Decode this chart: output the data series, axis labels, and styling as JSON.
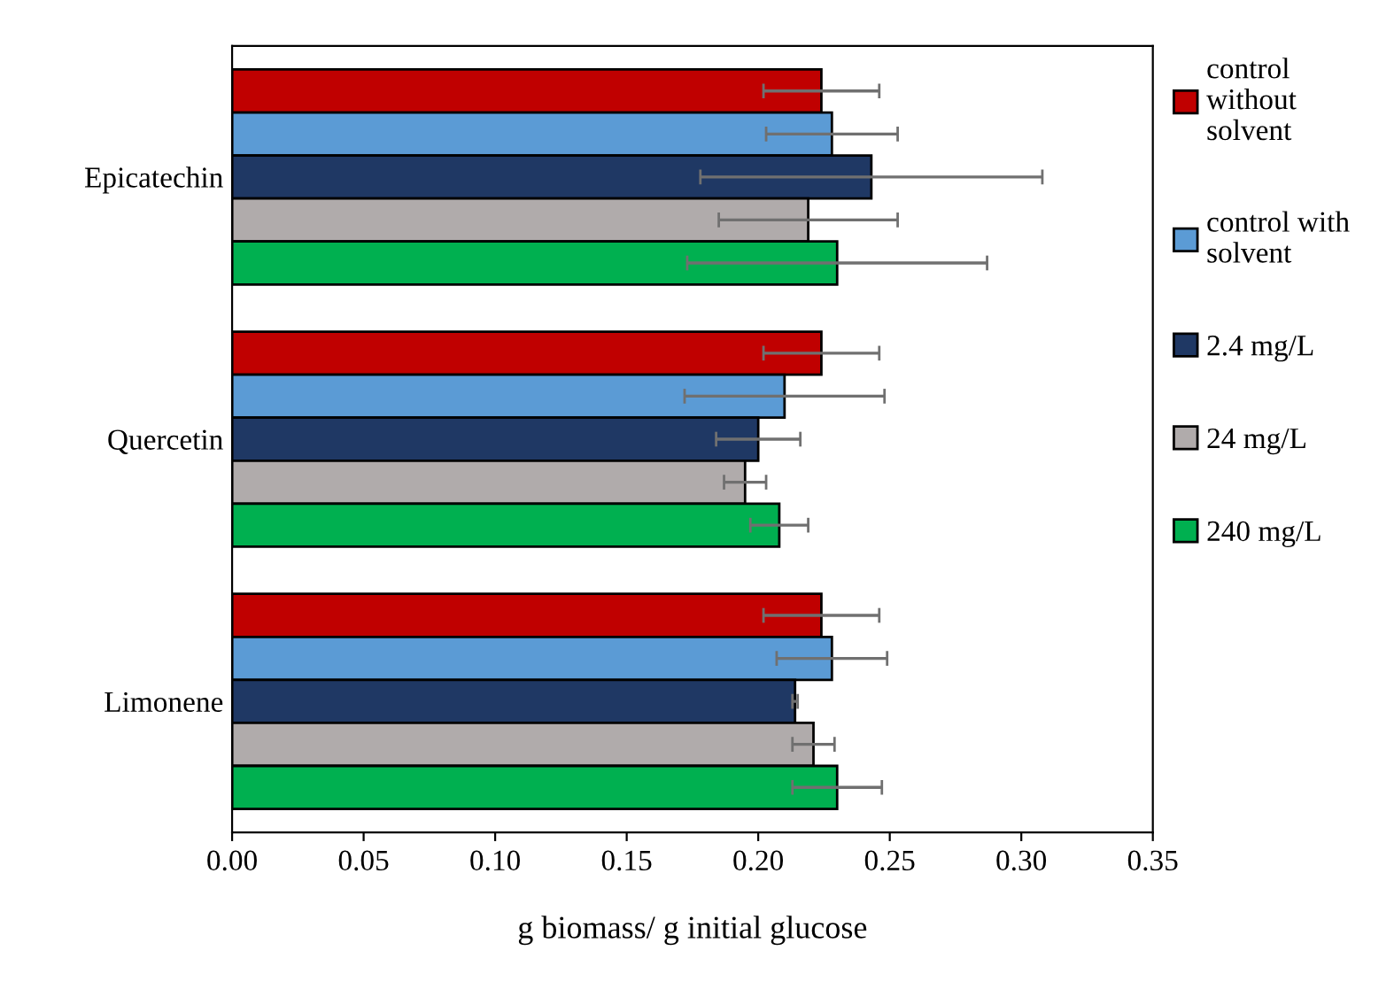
{
  "chart_data": {
    "type": "bar",
    "orientation": "horizontal",
    "xlabel": "g biomass/ g initial glucose",
    "categories": [
      "Epicatechin",
      "Quercetin",
      "Limonene"
    ],
    "series": [
      {
        "name": "control without solvent",
        "color": "#c00000",
        "values": [
          0.224,
          0.224,
          0.224
        ],
        "errors": [
          0.022,
          0.022,
          0.022
        ]
      },
      {
        "name": "control with solvent",
        "color": "#5b9bd5",
        "values": [
          0.228,
          0.21,
          0.228
        ],
        "errors": [
          0.025,
          0.038,
          0.021
        ]
      },
      {
        "name": "2.4 mg/L",
        "color": "#1f3864",
        "values": [
          0.243,
          0.2,
          0.214
        ],
        "errors": [
          0.065,
          0.016,
          0.001
        ]
      },
      {
        "name": "24 mg/L",
        "color": "#b0abab",
        "values": [
          0.219,
          0.195,
          0.221
        ],
        "errors": [
          0.034,
          0.008,
          0.008
        ]
      },
      {
        "name": "240 mg/L",
        "color": "#00b050",
        "values": [
          0.23,
          0.208,
          0.23
        ],
        "errors": [
          0.057,
          0.011,
          0.017
        ]
      }
    ],
    "xlim": [
      0,
      0.35
    ],
    "xticks": [
      {
        "value": 0,
        "label": "0.00"
      },
      {
        "value": 0.05,
        "label": "0.05"
      },
      {
        "value": 0.1,
        "label": "0.10"
      },
      {
        "value": 0.15,
        "label": "0.15"
      },
      {
        "value": 0.2,
        "label": "0.20"
      },
      {
        "value": 0.25,
        "label": "0.25"
      },
      {
        "value": 0.3,
        "label": "0.30"
      },
      {
        "value": 0.35,
        "label": "0.35"
      }
    ],
    "legend": "right",
    "grid": false
  }
}
